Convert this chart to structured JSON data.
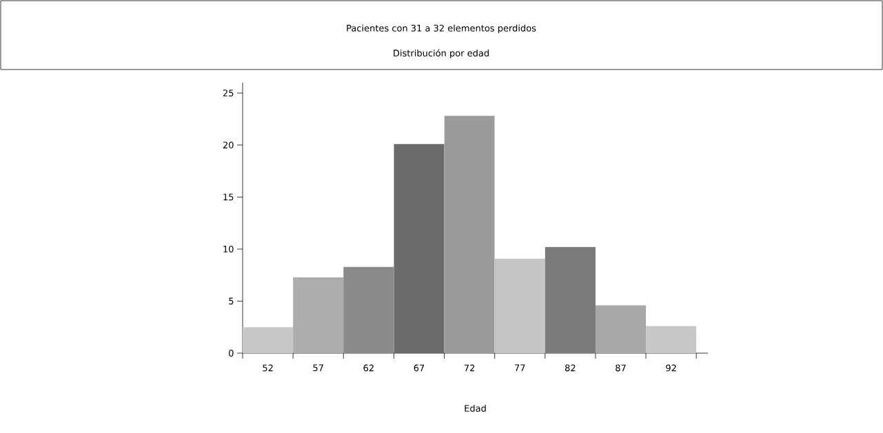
{
  "chart_data": {
    "type": "bar",
    "title": "Pacientes con 31 a 32 elementos perdidos",
    "subtitle": "Distribución por edad",
    "xlabel": "Edad",
    "categories": [
      "52",
      "57",
      "62",
      "67",
      "72",
      "77",
      "82",
      "87",
      "92"
    ],
    "values": [
      2.5,
      7.3,
      8.3,
      20.1,
      22.8,
      9.1,
      10.2,
      4.6,
      2.6
    ],
    "colors": [
      "#c8c8c8",
      "#adadad",
      "#8a8a8a",
      "#6b6b6b",
      "#9b9b9b",
      "#c4c4c4",
      "#7b7b7b",
      "#a8a8a8",
      "#c8c8c8"
    ],
    "ylim": [
      0,
      26
    ],
    "yticks": [
      0,
      5,
      10,
      15,
      20,
      25
    ],
    "grid": false
  }
}
